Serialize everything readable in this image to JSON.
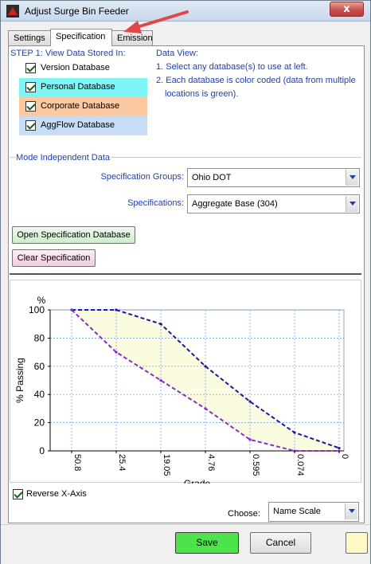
{
  "window": {
    "title": "Adjust Surge Bin Feeder",
    "close_label": "x"
  },
  "tabs": [
    {
      "label": "Settings",
      "active": false
    },
    {
      "label": "Specification",
      "active": true
    },
    {
      "label": "Emission",
      "active": false
    }
  ],
  "step": {
    "label": "STEP 1:  View Data Stored In:",
    "databases": [
      {
        "label": "Version Database",
        "checked": true,
        "color": "#ffffff"
      },
      {
        "label": "Personal Database",
        "checked": true,
        "color": "#7ff4f4"
      },
      {
        "label": "Corporate Database",
        "checked": true,
        "color": "#fdc9a0"
      },
      {
        "label": "AggFlow Database",
        "checked": true,
        "color": "#c6ddf5"
      }
    ]
  },
  "data_view": {
    "title": "Data View:",
    "line1": "1. Select any database(s) to use at left.",
    "line2": "2. Each database is color coded (data from multiple",
    "line3": "locations is green)."
  },
  "mode_data": {
    "title": "Mode Independent Data",
    "spec_groups_label": "Specification Groups:",
    "spec_groups_value": "Ohio DOT",
    "specs_label": "Specifications:",
    "specs_value": "Aggregate Base (304)",
    "open_button": "Open Specification Database",
    "clear_button": "Clear Specification"
  },
  "chart_data": {
    "type": "area",
    "ylabel": "% Passing",
    "y_unit": "%",
    "xlabel": "Grade",
    "categories": [
      "50.8",
      "25.4",
      "19.05",
      "4.76",
      "0.595",
      "0.074",
      "0"
    ],
    "ylim": [
      0,
      100
    ],
    "yticks": [
      "0",
      "20",
      "40",
      "60",
      "80",
      "100"
    ],
    "grid": true,
    "series": [
      {
        "role": "upper",
        "values": [
          100,
          100,
          90,
          60,
          35,
          13,
          2
        ],
        "color": "#1a1aa0"
      },
      {
        "role": "lower",
        "values": [
          100,
          70,
          50,
          30,
          8,
          0,
          0
        ],
        "color": "#8a2bc8"
      }
    ],
    "fill_color": "#fbfbe0"
  },
  "chart_controls": {
    "reverse_axis_label": "Reverse X-Axis",
    "reverse_checked": true,
    "choose_label": "Choose:",
    "choose_value": "Name Scale"
  },
  "footer": {
    "save": "Save",
    "cancel": "Cancel"
  },
  "colors": {
    "accent_blue": "#1f3fae",
    "save_green": "#4de34d",
    "arrow_red": "#e04848"
  }
}
